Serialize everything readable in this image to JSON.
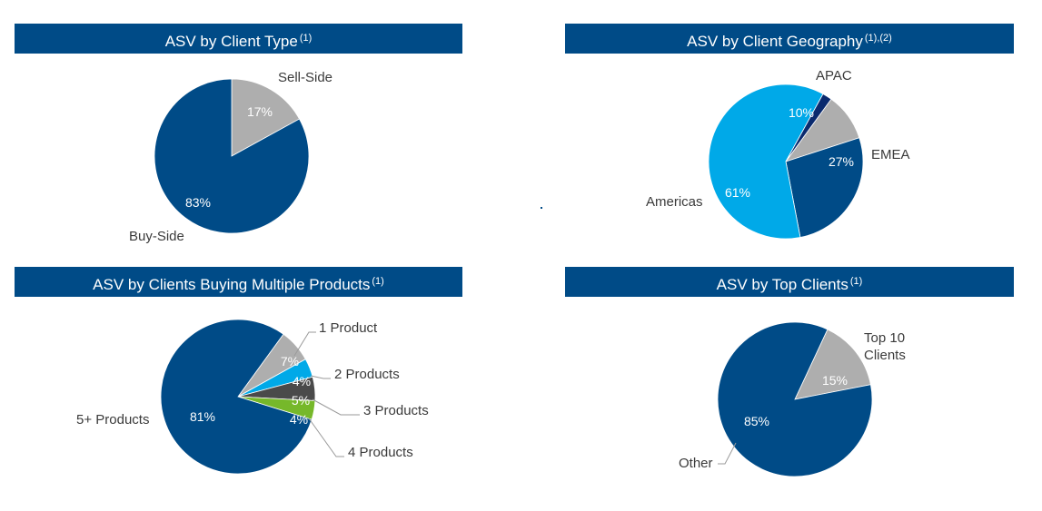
{
  "panels": [
    {
      "title": "ASV by Client Type",
      "note": "(1)"
    },
    {
      "title": "ASV by Client Geography",
      "note": "(1),(2)"
    },
    {
      "title": "ASV by Clients Buying Multiple Products",
      "note": "(1)"
    },
    {
      "title": "ASV by Top Clients",
      "note": "(1)"
    }
  ],
  "chart_data": [
    {
      "type": "pie",
      "title": "ASV by Client Type",
      "slices": [
        {
          "label": "Sell-Side",
          "value": 17,
          "display": "17%",
          "color": "#aeaeae"
        },
        {
          "label": "Buy-Side",
          "value": 83,
          "display": "83%",
          "color": "#004b87"
        }
      ]
    },
    {
      "type": "pie",
      "title": "ASV by Client Geography",
      "slices": [
        {
          "label": "APAC",
          "value": 10,
          "display": "10%",
          "color": "#aeaeae"
        },
        {
          "label": "EMEA",
          "value": 27,
          "display": "27%",
          "color": "#004b87"
        },
        {
          "label": "Americas",
          "value": 61,
          "display": "61%",
          "color": "#00a9e8"
        },
        {
          "label": "",
          "value": 2,
          "display": "",
          "color": "#0a2a6e"
        }
      ]
    },
    {
      "type": "pie",
      "title": "ASV by Clients Buying Multiple Products",
      "slices": [
        {
          "label": "1 Product",
          "value": 7,
          "display": "7%",
          "color": "#aeaeae"
        },
        {
          "label": "2 Products",
          "value": 4,
          "display": "4%",
          "color": "#00a9e8"
        },
        {
          "label": "3 Products",
          "value": 5,
          "display": "5%",
          "color": "#4a4a4a"
        },
        {
          "label": "4 Products",
          "value": 4,
          "display": "4%",
          "color": "#76b82a"
        },
        {
          "label": "5+ Products",
          "value": 81,
          "display": "81%",
          "color": "#004b87"
        }
      ]
    },
    {
      "type": "pie",
      "title": "ASV by Top Clients",
      "slices": [
        {
          "label": "Top 10 Clients",
          "label_lines": [
            "Top 10",
            "Clients"
          ],
          "value": 15,
          "display": "15%",
          "color": "#aeaeae"
        },
        {
          "label": "Other",
          "value": 85,
          "display": "85%",
          "color": "#004b87"
        }
      ]
    }
  ]
}
